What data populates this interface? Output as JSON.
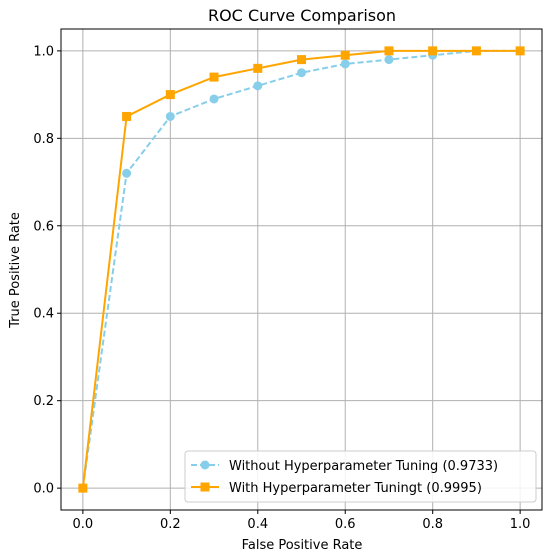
{
  "chart_data": {
    "type": "line",
    "title": "ROC Curve Comparison",
    "xlabel": "False Positive Rate",
    "ylabel": "True Positive Rate",
    "xlim": [
      -0.05,
      1.05
    ],
    "ylim": [
      -0.05,
      1.05
    ],
    "xticks": [
      0.0,
      0.2,
      0.4,
      0.6,
      0.8,
      1.0
    ],
    "xtick_labels": [
      "0.0",
      "0.2",
      "0.4",
      "0.6",
      "0.8",
      "1.0"
    ],
    "yticks": [
      0.0,
      0.2,
      0.4,
      0.6,
      0.8,
      1.0
    ],
    "ytick_labels": [
      "0.0",
      "0.2",
      "0.4",
      "0.6",
      "0.8",
      "1.0"
    ],
    "grid": true,
    "legend_position": "lower-right",
    "x": [
      0.0,
      0.1,
      0.2,
      0.3,
      0.4,
      0.5,
      0.6,
      0.7,
      0.8,
      0.9,
      1.0
    ],
    "series": [
      {
        "name": "Without Hyperparameter Tuning (0.9733)",
        "values": [
          0.0,
          0.72,
          0.85,
          0.89,
          0.92,
          0.95,
          0.97,
          0.98,
          0.99,
          1.0,
          1.0
        ],
        "color": "#87ceeb",
        "line_style": "dashed",
        "marker": "circle"
      },
      {
        "name": "With Hyperparameter Tuningt (0.9995)",
        "values": [
          0.0,
          0.85,
          0.9,
          0.94,
          0.96,
          0.98,
          0.99,
          1.0,
          1.0,
          1.0,
          1.0
        ],
        "color": "#ffa500",
        "line_style": "solid",
        "marker": "square"
      }
    ]
  }
}
